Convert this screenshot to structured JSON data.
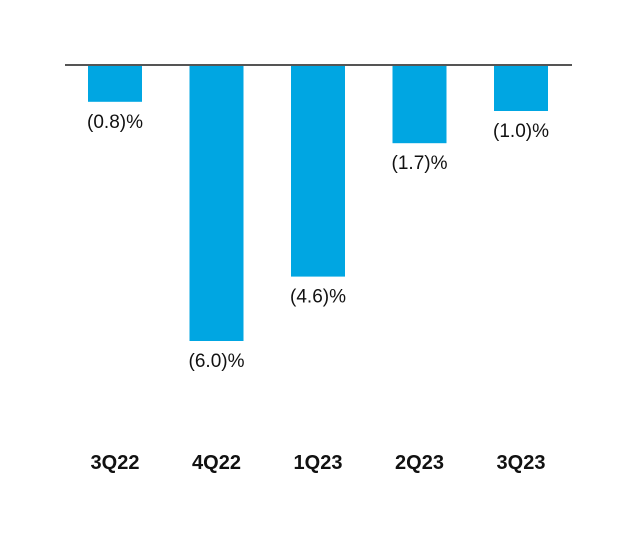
{
  "chart_data": {
    "type": "bar",
    "categories": [
      "3Q22",
      "4Q22",
      "1Q23",
      "2Q23",
      "3Q23"
    ],
    "values": [
      -0.8,
      -6.0,
      -4.6,
      -1.7,
      -1.0
    ],
    "data_labels": [
      "(0.8)%",
      "(6.0)%",
      "(4.6)%",
      "(1.7)%",
      "(1.0)%"
    ],
    "title": "",
    "xlabel": "",
    "ylabel": "",
    "ylim": [
      -6.0,
      0
    ],
    "grid": false,
    "legend": "none",
    "colors": {
      "bar": "#00A6E2",
      "baseline": "#555555"
    }
  }
}
